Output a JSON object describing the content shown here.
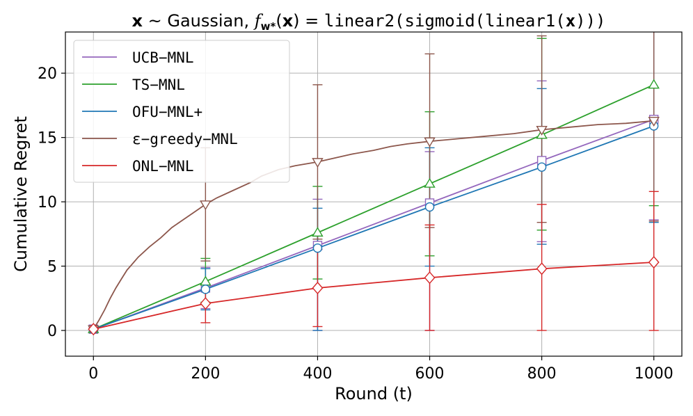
{
  "chart_data": {
    "type": "line",
    "title": {
      "part1": "x",
      "part2": " ~ Gaussian, ",
      "part3": "f",
      "part4": "w*",
      "part5": "(",
      "part6": "x",
      "part7": ") = ",
      "part8": "linear2(sigmoid(linear1(",
      "part9": "x",
      "part10": ")))"
    },
    "xlabel": "Round (t)",
    "ylabel": "Cumulative Regret",
    "xlim": [
      -50,
      1050
    ],
    "ylim": [
      -2,
      23.2
    ],
    "xticks": [
      0,
      200,
      400,
      600,
      800,
      1000
    ],
    "yticks": [
      0,
      5,
      10,
      15,
      20
    ],
    "grid": true,
    "legend_position": "top-left",
    "series": [
      {
        "name": "UCB−MNL",
        "color": "#9467bd",
        "marker": "square",
        "x": [
          0,
          200,
          400,
          600,
          800,
          1000
        ],
        "y": [
          0.1,
          3.3,
          6.6,
          9.9,
          13.2,
          16.4
        ],
        "err_low": [
          0.1,
          1.7,
          0,
          0,
          6.9,
          8.6
        ],
        "err_high": [
          0.1,
          4.9,
          10.2,
          13.9,
          19.4,
          23.2
        ]
      },
      {
        "name": "TS−MNL",
        "color": "#2ca02c",
        "marker": "triangle-up",
        "x": [
          0,
          200,
          400,
          600,
          800,
          1000
        ],
        "y": [
          0.1,
          3.8,
          7.6,
          11.4,
          15.2,
          19.1
        ],
        "err_low": [
          0.1,
          2.2,
          4.0,
          5.8,
          7.8,
          9.7
        ],
        "err_high": [
          0.1,
          5.6,
          11.2,
          17.0,
          22.7,
          23.2
        ]
      },
      {
        "name": "OFU−MNL+",
        "color": "#1f77b4",
        "marker": "circle",
        "x": [
          0,
          200,
          400,
          600,
          800,
          1000
        ],
        "y": [
          0.1,
          3.2,
          6.4,
          9.6,
          12.7,
          15.9
        ],
        "err_low": [
          0.1,
          1.6,
          0,
          5.0,
          6.7,
          8.4
        ],
        "err_high": [
          0.1,
          4.8,
          9.5,
          14.2,
          18.8,
          23.2
        ]
      },
      {
        "name": "ε−greedy−MNL",
        "color": "#8c564b",
        "marker": "triangle-down",
        "x": [
          0,
          10,
          20,
          30,
          40,
          50,
          60,
          70,
          80,
          100,
          120,
          140,
          160,
          180,
          200,
          220,
          250,
          280,
          300,
          330,
          360,
          400,
          430,
          460,
          500,
          530,
          560,
          600,
          650,
          700,
          750,
          800,
          850,
          900,
          950,
          1000
        ],
        "y": [
          0.1,
          0.8,
          1.6,
          2.5,
          3.3,
          4.0,
          4.7,
          5.2,
          5.7,
          6.5,
          7.2,
          8.0,
          8.6,
          9.2,
          9.8,
          10.3,
          10.9,
          11.5,
          12.0,
          12.5,
          12.8,
          13.1,
          13.4,
          13.7,
          14.0,
          14.3,
          14.5,
          14.7,
          14.9,
          15.1,
          15.3,
          15.6,
          15.8,
          16.0,
          16.1,
          16.3
        ],
        "marker_x": [
          0,
          200,
          400,
          600,
          800,
          1000
        ],
        "marker_y": [
          0.1,
          9.8,
          13.1,
          14.7,
          15.6,
          16.3
        ],
        "err_low": [
          0.1,
          5.4,
          7.1,
          8.0,
          8.4,
          8.5
        ],
        "err_high": [
          0.1,
          14.2,
          19.1,
          21.5,
          22.9,
          23.2
        ]
      },
      {
        "name": "ONL−MNL",
        "color": "#d62728",
        "marker": "diamond",
        "x": [
          0,
          200,
          400,
          600,
          800,
          1000
        ],
        "y": [
          0.1,
          2.1,
          3.3,
          4.1,
          4.8,
          5.3
        ],
        "err_low": [
          0.1,
          0.6,
          0.3,
          0,
          0,
          0
        ],
        "err_high": [
          0.1,
          3.6,
          6.3,
          8.2,
          9.8,
          10.8
        ]
      }
    ]
  }
}
